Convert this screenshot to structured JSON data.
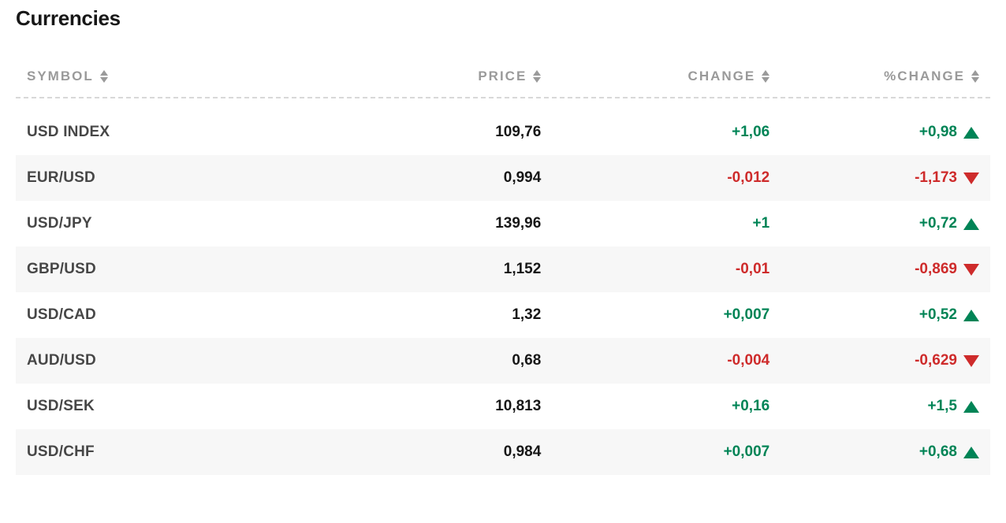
{
  "title": "Currencies",
  "colors": {
    "text": "#171717",
    "symbol_text": "#474747",
    "header_text": "#9a9a9a",
    "up": "#008456",
    "down": "#ce2b2b",
    "row_alt_bg": "#f7f7f7",
    "background": "#ffffff",
    "dashed_border": "#d8d8d8"
  },
  "typography": {
    "title_fontsize": 26,
    "title_fontweight": 800,
    "header_fontsize": 17,
    "header_letter_spacing": 2,
    "row_fontsize": 19,
    "row_fontweight": 700
  },
  "columns": [
    {
      "key": "symbol",
      "label": "SYMBOL",
      "align": "left",
      "width_pct": 36
    },
    {
      "key": "price",
      "label": "PRICE",
      "align": "right",
      "width_pct": 18
    },
    {
      "key": "change",
      "label": "CHANGE",
      "align": "right",
      "width_pct": 24
    },
    {
      "key": "pct_change",
      "label": "%CHANGE",
      "align": "right",
      "width_pct": 22
    }
  ],
  "rows": [
    {
      "symbol": "USD INDEX",
      "price": "109,76",
      "change": "+1,06",
      "pct_change": "+0,98",
      "direction": "up"
    },
    {
      "symbol": "EUR/USD",
      "price": "0,994",
      "change": "-0,012",
      "pct_change": "-1,173",
      "direction": "down"
    },
    {
      "symbol": "USD/JPY",
      "price": "139,96",
      "change": "+1",
      "pct_change": "+0,72",
      "direction": "up"
    },
    {
      "symbol": "GBP/USD",
      "price": "1,152",
      "change": "-0,01",
      "pct_change": "-0,869",
      "direction": "down"
    },
    {
      "symbol": "USD/CAD",
      "price": "1,32",
      "change": "+0,007",
      "pct_change": "+0,52",
      "direction": "up"
    },
    {
      "symbol": "AUD/USD",
      "price": "0,68",
      "change": "-0,004",
      "pct_change": "-0,629",
      "direction": "down"
    },
    {
      "symbol": "USD/SEK",
      "price": "10,813",
      "change": "+0,16",
      "pct_change": "+1,5",
      "direction": "up"
    },
    {
      "symbol": "USD/CHF",
      "price": "0,984",
      "change": "+0,007",
      "pct_change": "+0,68",
      "direction": "up"
    }
  ]
}
